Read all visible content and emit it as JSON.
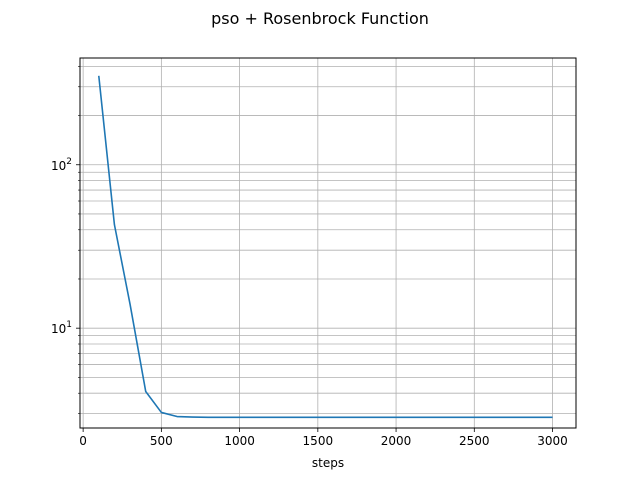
{
  "chart_data": {
    "type": "line",
    "title": "pso + Rosenbrock Function",
    "xlabel": "steps",
    "ylabel": "",
    "xlim": [
      -20,
      3150
    ],
    "ylim": [
      2.45,
      450
    ],
    "yscale": "log",
    "grid": true,
    "grid_minor_y": true,
    "legend": "none",
    "x_ticks": [
      0,
      500,
      1000,
      1500,
      2000,
      2500,
      3000
    ],
    "x_tick_labels": [
      "0",
      "500",
      "1000",
      "1500",
      "2000",
      "2500",
      "3000"
    ],
    "y_ticks_major": [
      10,
      100
    ],
    "y_tick_labels": [
      [
        "10",
        "1"
      ],
      [
        "10",
        "2"
      ]
    ],
    "y_ticks_minor": [
      3,
      4,
      5,
      6,
      7,
      8,
      9,
      20,
      30,
      40,
      50,
      60,
      70,
      80,
      90,
      200,
      300,
      400
    ],
    "line_color": "#1f77b4",
    "grid_color": "#b0b0b0",
    "series": [
      {
        "x": [
          100,
          200,
          300,
          400,
          500,
          600,
          700,
          800,
          900,
          1000,
          1100,
          1200,
          1300,
          1400,
          1500,
          1600,
          1700,
          1800,
          1900,
          2000,
          2100,
          2200,
          2300,
          2400,
          2500,
          2600,
          2700,
          2800,
          2900,
          3000
        ],
        "values": [
          350,
          43,
          14,
          4.1,
          3.05,
          2.88,
          2.86,
          2.85,
          2.85,
          2.85,
          2.85,
          2.85,
          2.85,
          2.85,
          2.85,
          2.85,
          2.85,
          2.85,
          2.85,
          2.85,
          2.85,
          2.85,
          2.85,
          2.85,
          2.85,
          2.85,
          2.85,
          2.85,
          2.85,
          2.85
        ]
      }
    ]
  }
}
